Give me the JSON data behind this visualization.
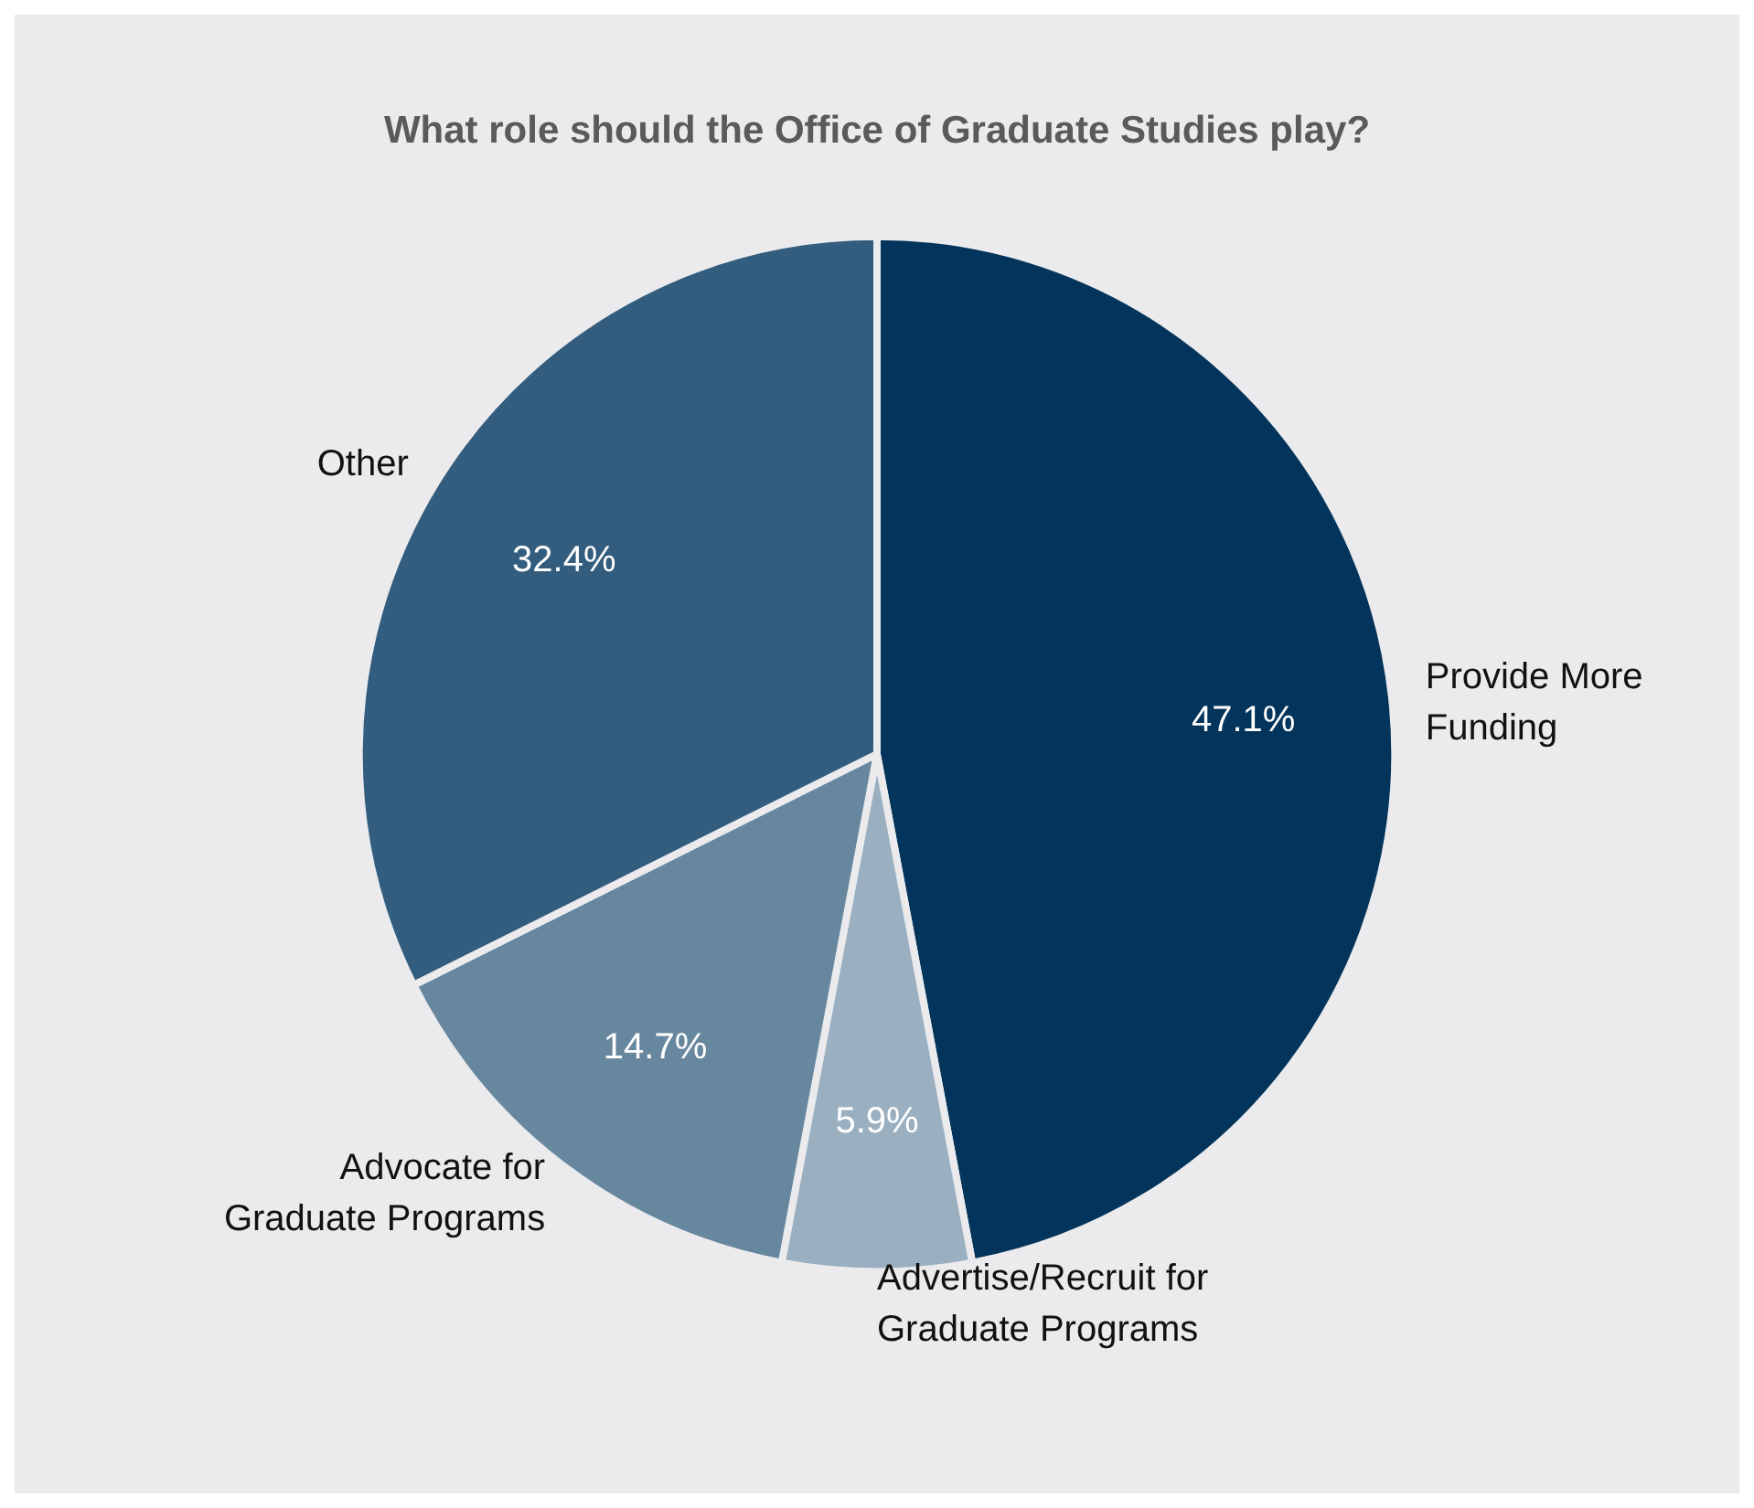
{
  "chart_data": {
    "type": "pie",
    "title": "What role should the Office of Graduate Studies play?",
    "categories": [
      "Provide More\nFunding",
      "Advertise/Recruit for\nGraduate Programs",
      "Advocate for\nGraduate Programs",
      "Other"
    ],
    "values": [
      47.1,
      5.9,
      14.7,
      32.4
    ],
    "value_labels": [
      "47.1%",
      "5.9%",
      "14.7%",
      "32.4%"
    ],
    "colors": [
      "#03345b",
      "#9aafc0",
      "#67879f",
      "#335d7e"
    ],
    "legend": false
  }
}
